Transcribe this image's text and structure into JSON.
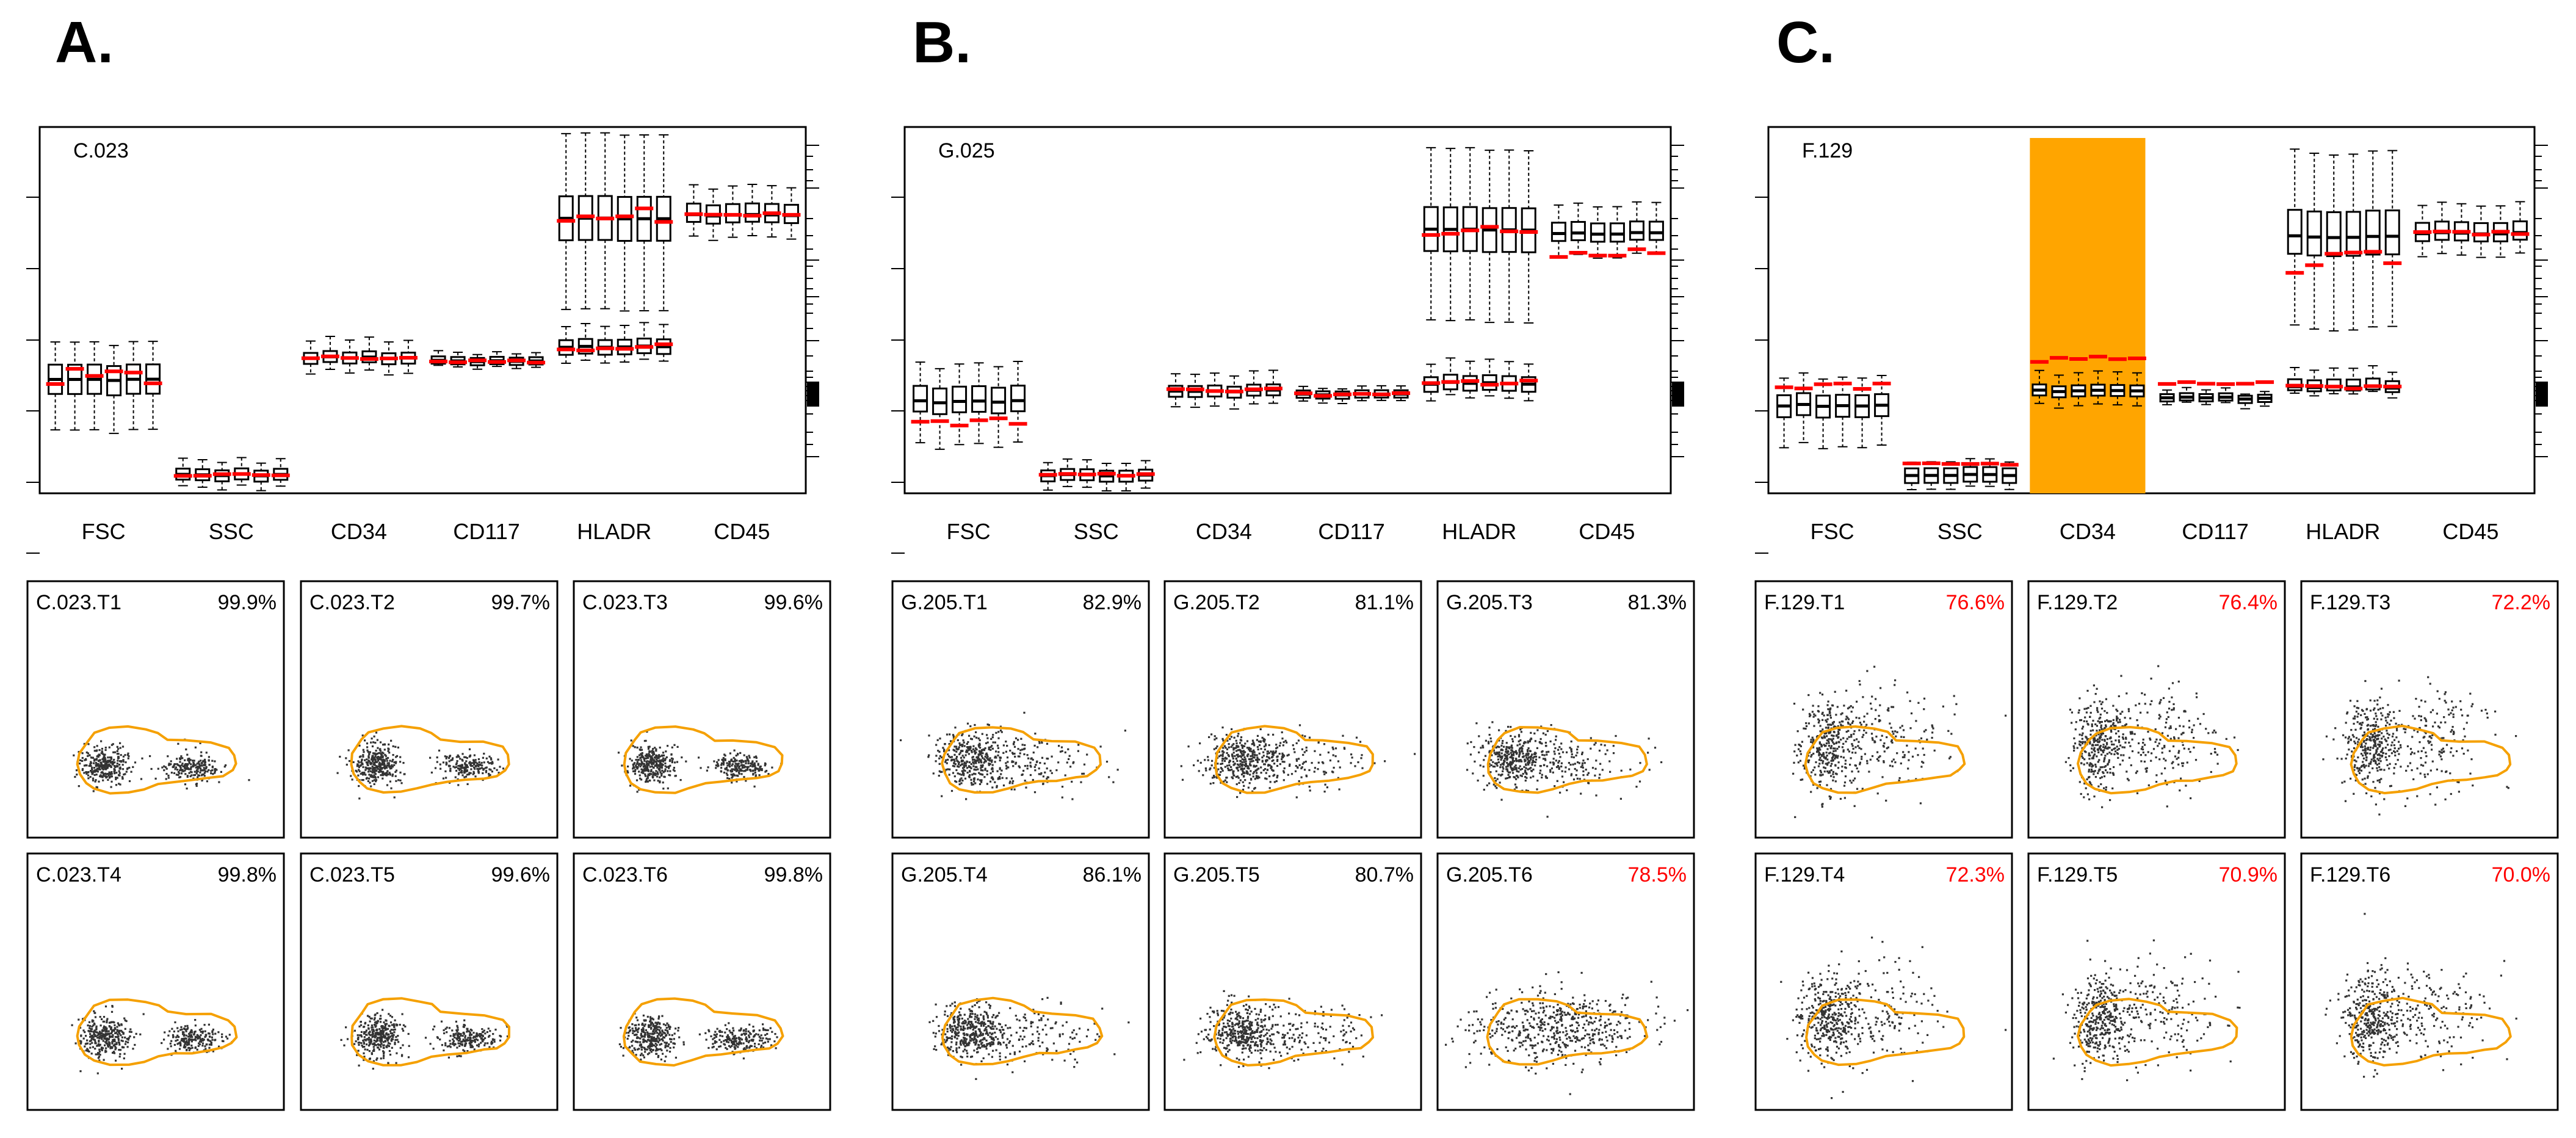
{
  "colors": {
    "gate": "#f5a000",
    "median": "#ff0000",
    "highlight": "#ffa500",
    "box": "#000000",
    "dots": "#333333",
    "flagged_text": "#ff0000",
    "normal_text": "#000000"
  },
  "markers": [
    "FSC",
    "SSC",
    "CD34",
    "CD117",
    "HLADR",
    "CD45"
  ],
  "chart_data": [
    {
      "panel": "A.",
      "type": "box",
      "sample": "C.023",
      "y_range": [
        0,
        100
      ],
      "highlight_marker": null,
      "markers": [
        {
          "name": "FSC",
          "median": 31,
          "q1": 27,
          "q3": 35,
          "whisker_low": 17,
          "whisker_high": 41,
          "ref": 31,
          "ref_spread": 3,
          "second": null
        },
        {
          "name": "SSC",
          "median": 5,
          "q1": 3.5,
          "q3": 6.5,
          "whisker_low": 1.5,
          "whisker_high": 9,
          "ref": 5,
          "ref_spread": 0.4,
          "second": null
        },
        {
          "name": "CD34",
          "median": 37,
          "q1": 35.5,
          "q3": 38.5,
          "whisker_low": 33,
          "whisker_high": 42,
          "ref": 37,
          "ref_spread": 0.5,
          "second": null
        },
        {
          "name": "CD117",
          "median": 36,
          "q1": 35,
          "q3": 37,
          "whisker_low": 34,
          "whisker_high": 38,
          "ref": 36,
          "ref_spread": 0.4,
          "second": null
        },
        {
          "name": "HLADR",
          "median": 75,
          "q1": 69,
          "q3": 81,
          "whisker_low": 50,
          "whisker_high": 98,
          "ref": 76,
          "ref_spread": 2,
          "second": {
            "median": 40,
            "q1": 38,
            "q3": 42,
            "whisker_low": 36,
            "whisker_high": 46,
            "ref": 40,
            "ref_spread": 1
          }
        },
        {
          "name": "CD45",
          "median": 76,
          "q1": 74,
          "q3": 79,
          "whisker_low": 70,
          "whisker_high": 84,
          "ref": 76,
          "ref_spread": 0.5,
          "second": null
        }
      ]
    },
    {
      "panel": "B.",
      "type": "box",
      "sample": "G.025",
      "y_range": [
        0,
        100
      ],
      "highlight_marker": null,
      "markers": [
        {
          "name": "FSC",
          "median": 25,
          "q1": 22,
          "q3": 29,
          "whisker_low": 13,
          "whisker_high": 35,
          "ref": 19,
          "ref_spread": 2.5,
          "second": null
        },
        {
          "name": "SSC",
          "median": 5,
          "q1": 3.5,
          "q3": 6.5,
          "whisker_low": 1.5,
          "whisker_high": 9,
          "ref": 5,
          "ref_spread": 0.4,
          "second": null
        },
        {
          "name": "CD34",
          "median": 28,
          "q1": 26.5,
          "q3": 29.5,
          "whisker_low": 24,
          "whisker_high": 33,
          "ref": 28,
          "ref_spread": 0.6,
          "second": null
        },
        {
          "name": "CD117",
          "median": 27,
          "q1": 26,
          "q3": 28,
          "whisker_low": 25,
          "whisker_high": 29,
          "ref": 27,
          "ref_spread": 0.4,
          "second": null
        },
        {
          "name": "HLADR",
          "median": 72,
          "q1": 66,
          "q3": 78,
          "whisker_low": 47,
          "whisker_high": 94,
          "ref": 72,
          "ref_spread": 2,
          "second": {
            "median": 30,
            "q1": 28,
            "q3": 32,
            "whisker_low": 26,
            "whisker_high": 36,
            "ref": 30,
            "ref_spread": 1
          }
        },
        {
          "name": "CD45",
          "median": 71,
          "q1": 69,
          "q3": 74,
          "whisker_low": 65,
          "whisker_high": 79,
          "ref": 66,
          "ref_spread": 1.5,
          "second": null
        }
      ]
    },
    {
      "panel": "C.",
      "type": "box",
      "sample": "F.129",
      "y_range": [
        0,
        100
      ],
      "highlight_marker": "CD34",
      "markers": [
        {
          "name": "FSC",
          "median": 24,
          "q1": 21,
          "q3": 27,
          "whisker_low": 13,
          "whisker_high": 32,
          "ref": 29,
          "ref_spread": 1,
          "second": null
        },
        {
          "name": "SSC",
          "median": 5,
          "q1": 3,
          "q3": 7,
          "whisker_low": 1.5,
          "whisker_high": 9,
          "ref": 8,
          "ref_spread": 0.3,
          "second": null
        },
        {
          "name": "CD34",
          "median": 28,
          "q1": 26.5,
          "q3": 29.5,
          "whisker_low": 24,
          "whisker_high": 33,
          "ref": 37,
          "ref_spread": 1.2,
          "second": null
        },
        {
          "name": "CD117",
          "median": 26,
          "q1": 25,
          "q3": 27,
          "whisker_low": 24,
          "whisker_high": 28,
          "ref": 30,
          "ref_spread": 0.4,
          "second": null
        },
        {
          "name": "HLADR",
          "median": 70,
          "q1": 65,
          "q3": 77,
          "whisker_low": 45,
          "whisker_high": 93,
          "ref": 63,
          "ref_spread": 3,
          "second": {
            "median": 29,
            "q1": 28,
            "q3": 31,
            "whisker_low": 27,
            "whisker_high": 34,
            "ref": 29,
            "ref_spread": 0.5
          }
        },
        {
          "name": "CD45",
          "median": 71,
          "q1": 69,
          "q3": 74,
          "whisker_low": 65,
          "whisker_high": 79,
          "ref": 71,
          "ref_spread": 0.5,
          "second": null
        }
      ]
    }
  ],
  "scatter_panels": [
    {
      "group": "A",
      "plots": [
        {
          "label": "C.023.T1",
          "percent": "99.9%",
          "flagged": false,
          "cluster": "bimodal"
        },
        {
          "label": "C.023.T2",
          "percent": "99.7%",
          "flagged": false,
          "cluster": "bimodal"
        },
        {
          "label": "C.023.T3",
          "percent": "99.6%",
          "flagged": false,
          "cluster": "bimodal"
        },
        {
          "label": "C.023.T4",
          "percent": "99.8%",
          "flagged": false,
          "cluster": "bimodal"
        },
        {
          "label": "C.023.T5",
          "percent": "99.6%",
          "flagged": false,
          "cluster": "bimodal"
        },
        {
          "label": "C.023.T6",
          "percent": "99.8%",
          "flagged": false,
          "cluster": "bimodal"
        }
      ]
    },
    {
      "group": "B",
      "plots": [
        {
          "label": "G.205.T1",
          "percent": "82.9%",
          "flagged": false,
          "cluster": "spread"
        },
        {
          "label": "G.205.T2",
          "percent": "81.1%",
          "flagged": false,
          "cluster": "spread"
        },
        {
          "label": "G.205.T3",
          "percent": "81.3%",
          "flagged": false,
          "cluster": "spread"
        },
        {
          "label": "G.205.T4",
          "percent": "86.1%",
          "flagged": false,
          "cluster": "spread"
        },
        {
          "label": "G.205.T5",
          "percent": "80.7%",
          "flagged": false,
          "cluster": "spread"
        },
        {
          "label": "G.205.T6",
          "percent": "78.5%",
          "flagged": true,
          "cluster": "wide"
        }
      ]
    },
    {
      "group": "C",
      "plots": [
        {
          "label": "F.129.T1",
          "percent": "76.6%",
          "flagged": true,
          "cluster": "upward"
        },
        {
          "label": "F.129.T2",
          "percent": "76.4%",
          "flagged": true,
          "cluster": "upward"
        },
        {
          "label": "F.129.T3",
          "percent": "72.2%",
          "flagged": true,
          "cluster": "upward"
        },
        {
          "label": "F.129.T4",
          "percent": "72.3%",
          "flagged": true,
          "cluster": "upward"
        },
        {
          "label": "F.129.T5",
          "percent": "70.9%",
          "flagged": true,
          "cluster": "upward"
        },
        {
          "label": "F.129.T6",
          "percent": "70.0%",
          "flagged": true,
          "cluster": "upward"
        }
      ]
    }
  ]
}
